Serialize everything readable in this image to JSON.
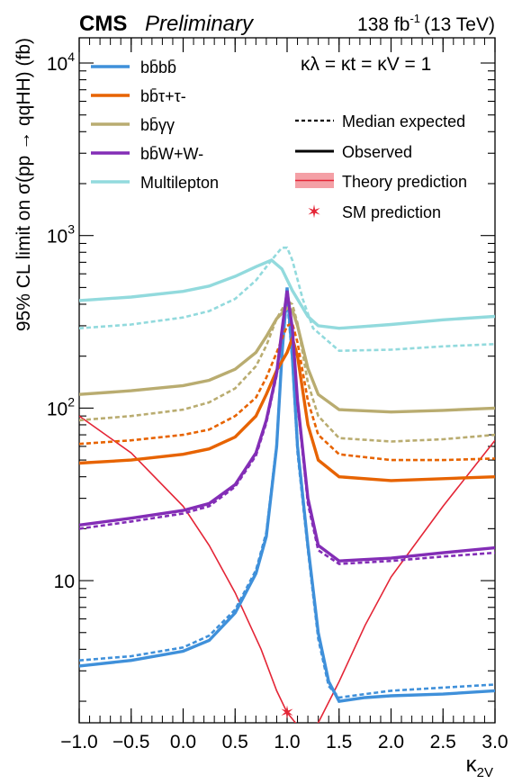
{
  "header": {
    "experiment": "CMS",
    "status": "Preliminary",
    "lumi_value": "138 fb",
    "lumi_exp": "-1",
    "energy": "(13 TeV)"
  },
  "chart_data": {
    "type": "line",
    "xlabel_main": "κ",
    "xlabel_sub": "2V",
    "ylabel": "95% CL limit on σ(pp → qqHH) (fb)",
    "xlim": [
      -1.0,
      3.0
    ],
    "ylim": [
      1.5,
      14000
    ],
    "y_scale": "log",
    "grid": false,
    "legend_position": "top",
    "x_ticks": [
      "−1.0",
      "−0.5",
      "0.0",
      "0.5",
      "1.0",
      "1.5",
      "2.0",
      "2.5",
      "3.0"
    ],
    "y_ticks": [
      {
        "base": "10",
        "exp": "",
        "value": 10
      },
      {
        "base": "10",
        "exp": "2",
        "value": 100
      },
      {
        "base": "10",
        "exp": "3",
        "value": 1000
      },
      {
        "base": "10",
        "exp": "4",
        "value": 10000
      }
    ],
    "coupling_text": "κλ = κt = κV = 1",
    "legend": {
      "median_expected": "Median expected",
      "observed": "Observed",
      "theory": "Theory prediction",
      "sm": "SM prediction"
    },
    "colors": {
      "bbbb": "#3f90da",
      "bbtautau": "#e76300",
      "bbgg": "#b9ac70",
      "bbww": "#832db6",
      "multilepton": "#92dadd",
      "theory": "#e42536",
      "theory_band": "#f4a0a6",
      "sm_marker": "#e42536"
    },
    "series": [
      {
        "key": "bbbb",
        "name": "bb̄bb̄",
        "observed": [
          [
            -1.0,
            3.2
          ],
          [
            -0.5,
            3.45
          ],
          [
            0.0,
            3.9
          ],
          [
            0.25,
            4.5
          ],
          [
            0.5,
            6.5
          ],
          [
            0.7,
            11
          ],
          [
            0.8,
            18
          ],
          [
            0.9,
            60
          ],
          [
            0.95,
            200
          ],
          [
            1.0,
            500
          ],
          [
            1.05,
            200
          ],
          [
            1.1,
            60
          ],
          [
            1.2,
            16
          ],
          [
            1.3,
            5
          ],
          [
            1.4,
            2.6
          ],
          [
            1.5,
            2.0
          ],
          [
            1.75,
            2.1
          ],
          [
            2.0,
            2.15
          ],
          [
            2.5,
            2.2
          ],
          [
            3.0,
            2.3
          ]
        ],
        "expected": [
          [
            -1.0,
            3.45
          ],
          [
            -0.5,
            3.65
          ],
          [
            0.0,
            4.1
          ],
          [
            0.25,
            4.8
          ],
          [
            0.5,
            6.8
          ],
          [
            0.7,
            11.5
          ],
          [
            0.8,
            19
          ],
          [
            0.9,
            62
          ],
          [
            0.95,
            210
          ],
          [
            1.0,
            430
          ],
          [
            1.05,
            190
          ],
          [
            1.1,
            55
          ],
          [
            1.2,
            15
          ],
          [
            1.3,
            4.6
          ],
          [
            1.4,
            2.45
          ],
          [
            1.5,
            2.1
          ],
          [
            1.75,
            2.2
          ],
          [
            2.0,
            2.3
          ],
          [
            2.5,
            2.4
          ],
          [
            3.0,
            2.5
          ]
        ]
      },
      {
        "key": "bbtautau",
        "name": "bb̄τ+τ-",
        "observed": [
          [
            -1.0,
            48
          ],
          [
            -0.5,
            50
          ],
          [
            0.0,
            54
          ],
          [
            0.25,
            58
          ],
          [
            0.5,
            68
          ],
          [
            0.7,
            90
          ],
          [
            0.8,
            120
          ],
          [
            0.9,
            165
          ],
          [
            1.0,
            210
          ],
          [
            1.05,
            255
          ],
          [
            1.1,
            200
          ],
          [
            1.2,
            80
          ],
          [
            1.3,
            50
          ],
          [
            1.5,
            40
          ],
          [
            2.0,
            38
          ],
          [
            2.5,
            39
          ],
          [
            3.0,
            40
          ]
        ],
        "expected": [
          [
            -1.0,
            62
          ],
          [
            -0.5,
            65
          ],
          [
            0.0,
            70
          ],
          [
            0.25,
            75
          ],
          [
            0.5,
            90
          ],
          [
            0.7,
            115
          ],
          [
            0.8,
            150
          ],
          [
            0.9,
            210
          ],
          [
            1.0,
            300
          ],
          [
            1.05,
            310
          ],
          [
            1.1,
            240
          ],
          [
            1.2,
            110
          ],
          [
            1.3,
            70
          ],
          [
            1.5,
            54
          ],
          [
            2.0,
            50
          ],
          [
            2.5,
            50
          ],
          [
            3.0,
            51
          ]
        ]
      },
      {
        "key": "bbgg",
        "name": "bb̄γγ",
        "observed": [
          [
            -1.0,
            120
          ],
          [
            -0.5,
            126
          ],
          [
            0.0,
            135
          ],
          [
            0.25,
            145
          ],
          [
            0.5,
            168
          ],
          [
            0.7,
            210
          ],
          [
            0.8,
            260
          ],
          [
            0.9,
            330
          ],
          [
            1.0,
            380
          ],
          [
            1.05,
            370
          ],
          [
            1.1,
            300
          ],
          [
            1.2,
            170
          ],
          [
            1.3,
            120
          ],
          [
            1.5,
            98
          ],
          [
            2.0,
            95
          ],
          [
            2.5,
            97
          ],
          [
            3.0,
            100
          ]
        ],
        "expected": [
          [
            -1.0,
            85
          ],
          [
            -0.5,
            90
          ],
          [
            0.0,
            98
          ],
          [
            0.25,
            108
          ],
          [
            0.5,
            130
          ],
          [
            0.7,
            175
          ],
          [
            0.8,
            230
          ],
          [
            0.9,
            330
          ],
          [
            1.0,
            420
          ],
          [
            1.05,
            400
          ],
          [
            1.1,
            310
          ],
          [
            1.2,
            140
          ],
          [
            1.3,
            90
          ],
          [
            1.5,
            67
          ],
          [
            2.0,
            64
          ],
          [
            2.5,
            66
          ],
          [
            3.0,
            70
          ]
        ]
      },
      {
        "key": "bbww",
        "name": "bb̄W+W-",
        "observed": [
          [
            -1.0,
            21
          ],
          [
            -0.5,
            23
          ],
          [
            0.0,
            25.5
          ],
          [
            0.25,
            28
          ],
          [
            0.5,
            36
          ],
          [
            0.7,
            55
          ],
          [
            0.8,
            85
          ],
          [
            0.9,
            160
          ],
          [
            0.95,
            280
          ],
          [
            1.0,
            480
          ],
          [
            1.05,
            290
          ],
          [
            1.1,
            110
          ],
          [
            1.2,
            30
          ],
          [
            1.3,
            16
          ],
          [
            1.5,
            13
          ],
          [
            2.0,
            13.5
          ],
          [
            2.5,
            14.5
          ],
          [
            3.0,
            15.5
          ]
        ],
        "expected": [
          [
            -1.0,
            20
          ],
          [
            -0.5,
            22
          ],
          [
            0.0,
            24.5
          ],
          [
            0.25,
            27
          ],
          [
            0.5,
            35
          ],
          [
            0.7,
            53
          ],
          [
            0.8,
            82
          ],
          [
            0.9,
            155
          ],
          [
            0.95,
            270
          ],
          [
            1.0,
            460
          ],
          [
            1.05,
            280
          ],
          [
            1.1,
            105
          ],
          [
            1.2,
            28
          ],
          [
            1.3,
            15
          ],
          [
            1.5,
            12.5
          ],
          [
            2.0,
            13
          ],
          [
            2.5,
            13.8
          ],
          [
            3.0,
            14.5
          ]
        ]
      },
      {
        "key": "multilepton",
        "name": "Multilepton",
        "observed": [
          [
            -1.0,
            420
          ],
          [
            -0.5,
            440
          ],
          [
            0.0,
            475
          ],
          [
            0.25,
            510
          ],
          [
            0.5,
            580
          ],
          [
            0.7,
            660
          ],
          [
            0.85,
            720
          ],
          [
            0.95,
            640
          ],
          [
            1.05,
            480
          ],
          [
            1.2,
            340
          ],
          [
            1.3,
            300
          ],
          [
            1.5,
            290
          ],
          [
            2.0,
            305
          ],
          [
            2.5,
            325
          ],
          [
            3.0,
            340
          ]
        ],
        "expected": [
          [
            -1.0,
            290
          ],
          [
            -0.5,
            305
          ],
          [
            0.0,
            335
          ],
          [
            0.25,
            365
          ],
          [
            0.5,
            430
          ],
          [
            0.7,
            550
          ],
          [
            0.85,
            720
          ],
          [
            0.95,
            850
          ],
          [
            1.0,
            850
          ],
          [
            1.05,
            720
          ],
          [
            1.15,
            430
          ],
          [
            1.25,
            290
          ],
          [
            1.5,
            215
          ],
          [
            2.0,
            218
          ],
          [
            2.5,
            228
          ],
          [
            3.0,
            235
          ]
        ]
      }
    ],
    "theory": [
      [
        -1.0,
        90
      ],
      [
        -0.5,
        55
      ],
      [
        0.0,
        27
      ],
      [
        0.25,
        16
      ],
      [
        0.5,
        8.5
      ],
      [
        0.75,
        4.0
      ],
      [
        0.9,
        2.3
      ],
      [
        1.0,
        1.72
      ],
      [
        1.1,
        1.45
      ],
      [
        1.2,
        1.35
      ],
      [
        1.3,
        1.5
      ],
      [
        1.5,
        2.6
      ],
      [
        1.75,
        5.5
      ],
      [
        2.0,
        10.5
      ],
      [
        2.5,
        27
      ],
      [
        3.0,
        65
      ]
    ],
    "sm_point": {
      "x": 1.0,
      "y": 1.72
    }
  }
}
